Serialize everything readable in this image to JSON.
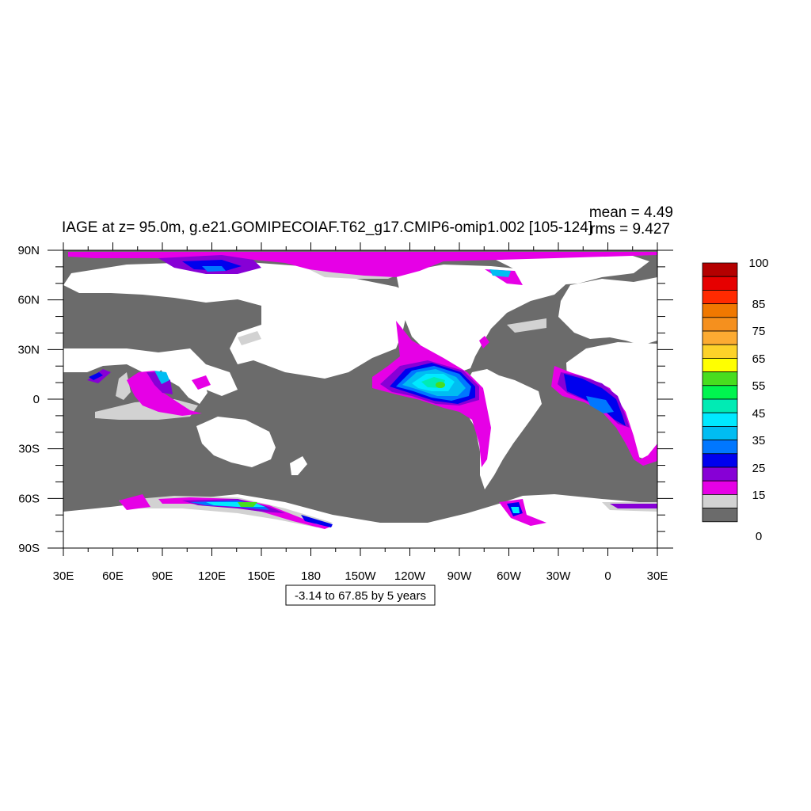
{
  "map": {
    "title": "IAGE at z=  95.0m, g.e21.GOMIPECOIAF.T62_g17.CMIP6-omip1.002 [105-124]",
    "stats": {
      "mean": "mean = 4.49",
      "rms": "rms = 9.427"
    },
    "contour_info": "-3.14 to 67.85 by 5 years",
    "x_ticks": [
      "30E",
      "60E",
      "90E",
      "120E",
      "150E",
      "180",
      "150W",
      "120W",
      "90W",
      "60W",
      "30W",
      "0",
      "30E"
    ],
    "y_ticks": [
      "90N",
      "60N",
      "30N",
      "0",
      "30S",
      "60S",
      "90S"
    ],
    "colorbar": {
      "labels": [
        "100",
        "85",
        "75",
        "65",
        "55",
        "45",
        "35",
        "25",
        "15",
        "0"
      ],
      "colors": [
        "#b40000",
        "#e60000",
        "#ff2a00",
        "#f07800",
        "#f5901e",
        "#fcab32",
        "#fdd229",
        "#ffff00",
        "#48dd1f",
        "#00f44f",
        "#00ebb4",
        "#00e9ff",
        "#00bdf2",
        "#0077ff",
        "#0000ee",
        "#8700d6",
        "#e600e6",
        "#d2d2d2",
        "#6b6b6b"
      ]
    }
  }
}
